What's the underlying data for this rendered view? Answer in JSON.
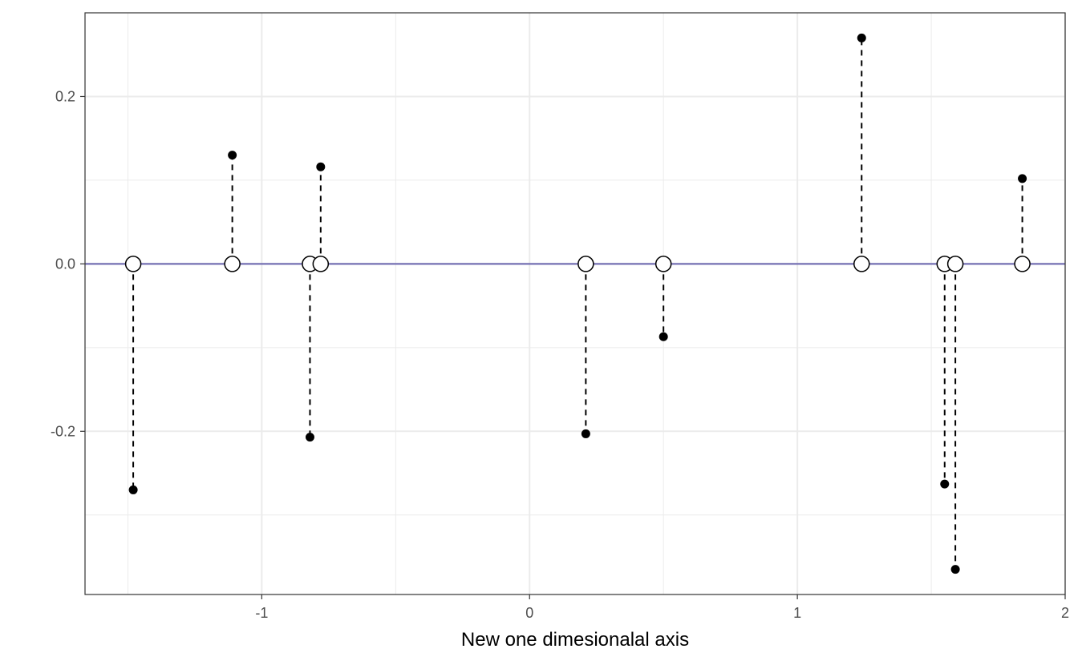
{
  "chart_data": {
    "type": "scatter",
    "title": "",
    "xlabel": "New one dimesionalal axis",
    "ylabel": "",
    "xlim": [
      -1.66,
      2.0
    ],
    "ylim": [
      -0.395,
      0.3
    ],
    "x_ticks": [
      -1,
      0,
      1,
      2
    ],
    "x_tick_labels": [
      "-1",
      "0",
      "1",
      "2"
    ],
    "y_ticks": [
      -0.2,
      0.0,
      0.2
    ],
    "y_tick_labels": [
      "-0.2",
      "0.0",
      "0.2"
    ],
    "grid": true,
    "legend": "none",
    "projection_line_color": "#7570b3",
    "points": [
      {
        "x": -1.48,
        "y": -0.27
      },
      {
        "x": -1.11,
        "y": 0.13
      },
      {
        "x": -0.82,
        "y": -0.207
      },
      {
        "x": -0.78,
        "y": 0.116
      },
      {
        "x": 0.21,
        "y": -0.203
      },
      {
        "x": 0.5,
        "y": -0.087
      },
      {
        "x": 1.24,
        "y": 0.27
      },
      {
        "x": 1.55,
        "y": -0.263
      },
      {
        "x": 1.59,
        "y": -0.365
      },
      {
        "x": 1.84,
        "y": 0.102
      }
    ]
  }
}
